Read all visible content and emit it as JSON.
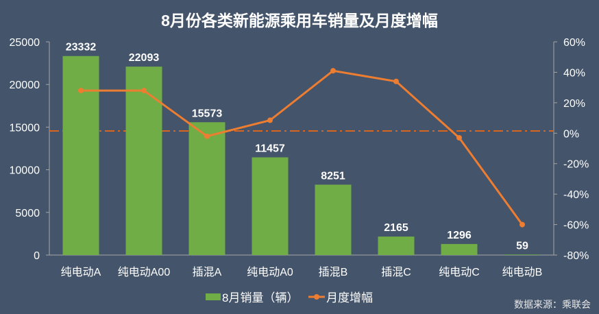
{
  "chart_data": {
    "type": "bar+line",
    "title": "8月份各类新能源乘用车销量及月度增幅",
    "categories": [
      "纯电动A",
      "纯电动A00",
      "插混A",
      "纯电动A0",
      "插混B",
      "插混C",
      "纯电动C",
      "纯电动B"
    ],
    "series": [
      {
        "name": "8月销量（辆）",
        "type": "bar",
        "axis": "left",
        "values": [
          23332,
          22093,
          15573,
          11457,
          8251,
          2165,
          1296,
          59
        ]
      },
      {
        "name": "月度增幅",
        "type": "line",
        "axis": "right",
        "values": [
          28,
          28,
          -2,
          8.5,
          41,
          34,
          -3,
          -60
        ]
      }
    ],
    "left_axis": {
      "ylim": [
        0,
        25000
      ],
      "ticks": [
        "0",
        "5000",
        "10000",
        "15000",
        "20000",
        "25000"
      ]
    },
    "right_axis": {
      "ylim": [
        -80,
        60
      ],
      "ticks": [
        "-80%",
        "-60%",
        "-40%",
        "-20%",
        "0%",
        "20%",
        "40%",
        "60%"
      ]
    },
    "reference_line": {
      "axis": "right",
      "value": 1.5
    },
    "legend_placement": "bottom",
    "source": "数据来源：乘联会",
    "colors": {
      "bar": "#70ad47",
      "line": "#ed7d31",
      "ref": "#d9651f",
      "background": "#44546a"
    }
  }
}
